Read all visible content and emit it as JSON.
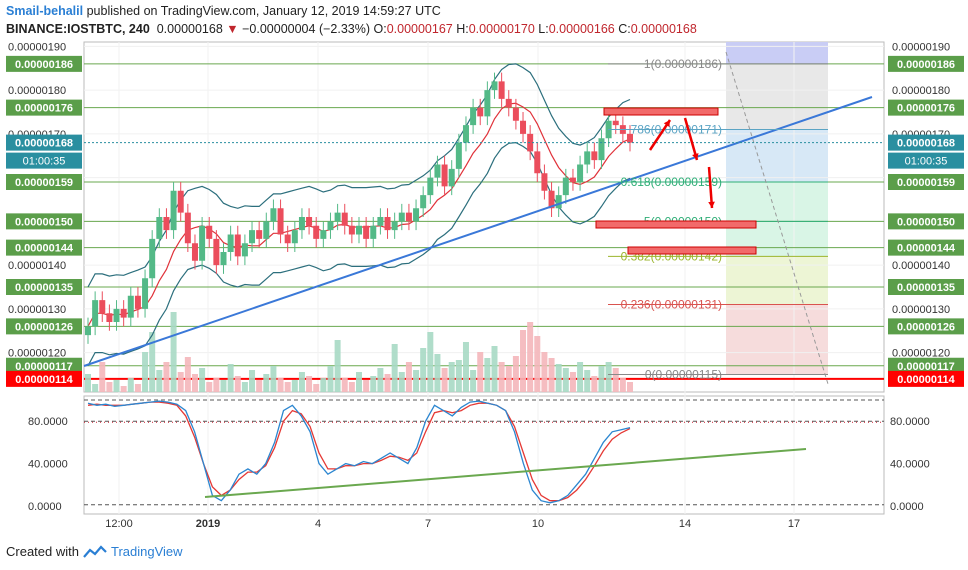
{
  "header": {
    "author": "Smail-behalil",
    "published": "published on TradingView.com, January 12, 2019 14:59:27 UTC",
    "symbol": "BINANCE:IOSTBTC, 240",
    "price": "0.00000168",
    "arrow": "▼",
    "change": "−0.00000004 (−2.33%)",
    "o_label": "O:",
    "o": "0.00000167",
    "h_label": "H:",
    "h": "0.00000170",
    "l_label": "L:",
    "l": "0.00000166",
    "c_label": "C:",
    "c": "0.00000168"
  },
  "footer": {
    "created_with": "Created with",
    "brand": "TradingView"
  },
  "colors": {
    "up": "#53b987",
    "down": "#eb4d5c",
    "trend": "#3a78d8",
    "bb": "#2c6f7d",
    "ma": "#e0323a",
    "hline": "#6aa84f",
    "label_bg": "#5b9e4a",
    "current": "#2a8fa0",
    "last_low": "#ff0000",
    "stoch_k": "#2b86d0",
    "stoch_d": "#e53935",
    "stoch_trend": "#6aa84f"
  },
  "chart_data": {
    "type": "candlestick",
    "y_range": [
      1.11e-06,
      1.91e-06
    ],
    "x_ticks": [
      "12:00",
      "2019",
      "4",
      "7",
      "10",
      "14",
      "17"
    ],
    "y_ticks": [
      "0.00000190",
      "0.00000180",
      "0.00000170",
      "0.00000160",
      "0.00000150",
      "0.00000140",
      "0.00000130",
      "0.00000120"
    ],
    "current_price": "0.00000168",
    "countdown": "01:00:35",
    "levels": [
      "0.00000186",
      "0.00000176",
      "0.00000159",
      "0.00000150",
      "0.00000144",
      "0.00000135",
      "0.00000126",
      "0.00000117",
      "0.00000114"
    ],
    "fib": [
      {
        "label": "1(0.00000186)",
        "value": 1.86e-06,
        "color": "#888888"
      },
      {
        "label": "786(0.00000171)",
        "value": 1.71e-06,
        "color": "#5ba4c4"
      },
      {
        "label": "0.618(0.00000159)",
        "value": 1.59e-06,
        "color": "#2fae77"
      },
      {
        "label": "5(0.00000150)",
        "value": 1.5e-06,
        "color": "#2fae77"
      },
      {
        "label": "0.382(0.00000142)",
        "value": 1.42e-06,
        "color": "#9bb52c"
      },
      {
        "label": "0.236(0.00000131)",
        "value": 1.31e-06,
        "color": "#d9534f"
      },
      {
        "label": "0(0.00000115)",
        "value": 1.15e-06,
        "color": "#888888"
      }
    ],
    "closes": [
      1.26,
      1.32,
      1.29,
      1.27,
      1.3,
      1.28,
      1.33,
      1.3,
      1.37,
      1.46,
      1.51,
      1.48,
      1.57,
      1.52,
      1.45,
      1.41,
      1.49,
      1.46,
      1.4,
      1.43,
      1.47,
      1.42,
      1.45,
      1.48,
      1.46,
      1.5,
      1.53,
      1.47,
      1.45,
      1.48,
      1.51,
      1.49,
      1.46,
      1.48,
      1.5,
      1.52,
      1.49,
      1.47,
      1.49,
      1.46,
      1.49,
      1.51,
      1.48,
      1.5,
      1.52,
      1.5,
      1.53,
      1.56,
      1.6,
      1.63,
      1.58,
      1.62,
      1.68,
      1.72,
      1.76,
      1.74,
      1.8,
      1.82,
      1.78,
      1.76,
      1.73,
      1.7,
      1.66,
      1.61,
      1.57,
      1.53,
      1.56,
      1.6,
      1.59,
      1.63,
      1.66,
      1.64,
      1.69,
      1.73,
      1.72,
      1.7,
      1.68
    ],
    "stoch_k": [
      97,
      95,
      96,
      94,
      95,
      96,
      97,
      98,
      99,
      98,
      96,
      90,
      70,
      40,
      10,
      5,
      15,
      30,
      35,
      30,
      40,
      60,
      90,
      95,
      85,
      70,
      40,
      30,
      35,
      40,
      38,
      42,
      40,
      45,
      50,
      45,
      40,
      55,
      80,
      95,
      90,
      85,
      93,
      98,
      99,
      97,
      95,
      90,
      70,
      40,
      15,
      5,
      3,
      5,
      10,
      20,
      30,
      45,
      60,
      70,
      72,
      74
    ],
    "stoch_d": [
      95,
      96,
      95,
      95,
      95,
      96,
      97,
      98,
      98,
      97,
      95,
      85,
      65,
      40,
      18,
      10,
      15,
      25,
      32,
      32,
      38,
      55,
      80,
      90,
      87,
      75,
      50,
      35,
      35,
      38,
      38,
      40,
      40,
      43,
      47,
      46,
      43,
      50,
      70,
      88,
      90,
      88,
      90,
      95,
      97,
      97,
      95,
      90,
      75,
      50,
      25,
      10,
      5,
      5,
      8,
      15,
      25,
      38,
      52,
      63,
      69,
      73
    ],
    "stoch_ticks": [
      "80.0000",
      "40.0000",
      "0.0000"
    ]
  }
}
